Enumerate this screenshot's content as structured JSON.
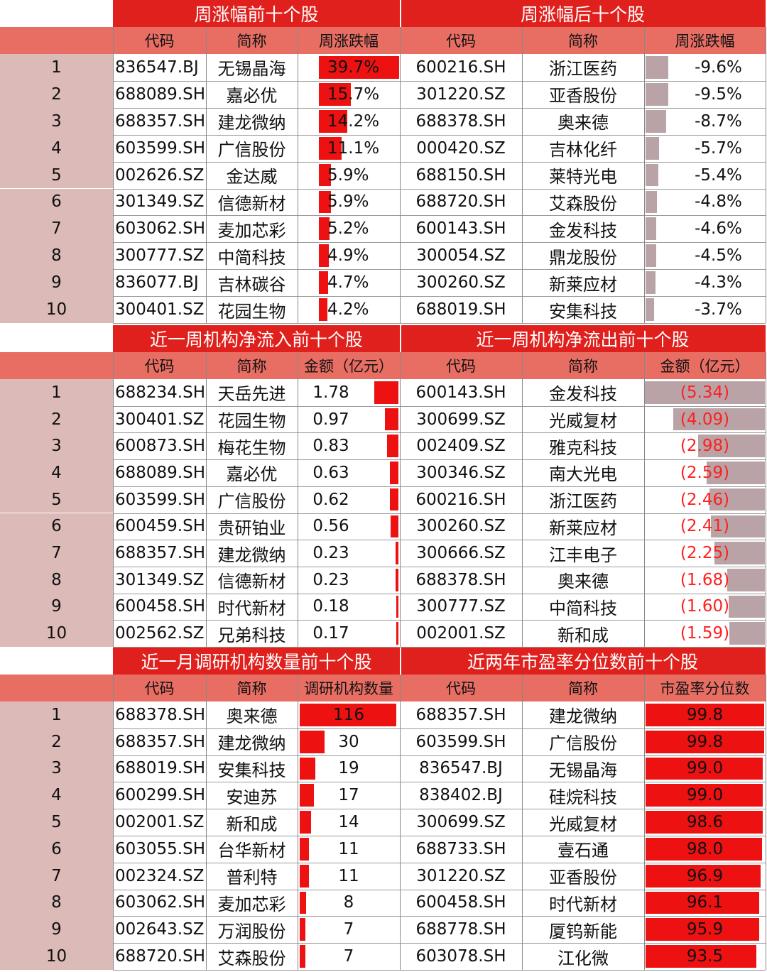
{
  "sections": [
    {
      "left": {
        "title": "周涨幅前十个股",
        "headers": [
          "代码",
          "简称",
          "周涨跌幅"
        ],
        "kind": "pct-pos",
        "rows": [
          {
            "code": "836547.BJ",
            "name": "无锡晶海",
            "value": "39.7%",
            "num": 39.7
          },
          {
            "code": "688089.SH",
            "name": "嘉必优",
            "value": "15.7%",
            "num": 15.7
          },
          {
            "code": "688357.SH",
            "name": "建龙微纳",
            "value": "14.2%",
            "num": 14.2
          },
          {
            "code": "603599.SH",
            "name": "广信股份",
            "value": "11.1%",
            "num": 11.1
          },
          {
            "code": "002626.SZ",
            "name": "金达威",
            "value": "5.9%",
            "num": 5.9
          },
          {
            "code": "301349.SZ",
            "name": "信德新材",
            "value": "5.9%",
            "num": 5.9
          },
          {
            "code": "603062.SH",
            "name": "麦加芯彩",
            "value": "5.2%",
            "num": 5.2
          },
          {
            "code": "300777.SZ",
            "name": "中简科技",
            "value": "4.9%",
            "num": 4.9
          },
          {
            "code": "836077.BJ",
            "name": "吉林碳谷",
            "value": "4.7%",
            "num": 4.7
          },
          {
            "code": "300401.SZ",
            "name": "花园生物",
            "value": "4.2%",
            "num": 4.2
          }
        ]
      },
      "right": {
        "title": "周涨幅后十个股",
        "headers": [
          "代码",
          "简称",
          "周涨跌幅"
        ],
        "kind": "pct-neg",
        "rows": [
          {
            "code": "600216.SH",
            "name": "浙江医药",
            "value": "-9.6%",
            "num": 9.6
          },
          {
            "code": "301220.SZ",
            "name": "亚香股份",
            "value": "-9.5%",
            "num": 9.5
          },
          {
            "code": "688378.SH",
            "name": "奥来德",
            "value": "-8.7%",
            "num": 8.7
          },
          {
            "code": "000420.SZ",
            "name": "吉林化纤",
            "value": "-5.7%",
            "num": 5.7
          },
          {
            "code": "688150.SH",
            "name": "莱特光电",
            "value": "-5.4%",
            "num": 5.4
          },
          {
            "code": "688720.SH",
            "name": "艾森股份",
            "value": "-4.8%",
            "num": 4.8
          },
          {
            "code": "600143.SH",
            "name": "金发科技",
            "value": "-4.6%",
            "num": 4.6
          },
          {
            "code": "300054.SZ",
            "name": "鼎龙股份",
            "value": "-4.5%",
            "num": 4.5
          },
          {
            "code": "300260.SZ",
            "name": "新莱应材",
            "value": "-4.3%",
            "num": 4.3
          },
          {
            "code": "688019.SH",
            "name": "安集科技",
            "value": "-3.7%",
            "num": 3.7
          }
        ]
      }
    },
    {
      "left": {
        "title": "近一周机构净流入前十个股",
        "headers": [
          "代码",
          "简称",
          "金额（亿元）"
        ],
        "kind": "flow-in",
        "rows": [
          {
            "code": "688234.SH",
            "name": "天岳先进",
            "value": "1.78",
            "num": 1.78
          },
          {
            "code": "300401.SZ",
            "name": "花园生物",
            "value": "0.97",
            "num": 0.97
          },
          {
            "code": "600873.SH",
            "name": "梅花生物",
            "value": "0.83",
            "num": 0.83
          },
          {
            "code": "688089.SH",
            "name": "嘉必优",
            "value": "0.63",
            "num": 0.63
          },
          {
            "code": "603599.SH",
            "name": "广信股份",
            "value": "0.62",
            "num": 0.62
          },
          {
            "code": "600459.SH",
            "name": "贵研铂业",
            "value": "0.56",
            "num": 0.56
          },
          {
            "code": "688357.SH",
            "name": "建龙微纳",
            "value": "0.23",
            "num": 0.23
          },
          {
            "code": "301349.SZ",
            "name": "信德新材",
            "value": "0.23",
            "num": 0.23
          },
          {
            "code": "600458.SH",
            "name": "时代新材",
            "value": "0.18",
            "num": 0.18
          },
          {
            "code": "002562.SZ",
            "name": "兄弟科技",
            "value": "0.17",
            "num": 0.17
          }
        ]
      },
      "right": {
        "title": "近一周机构净流出前十个股",
        "headers": [
          "代码",
          "简称",
          "金额（亿元）"
        ],
        "kind": "flow-out",
        "rows": [
          {
            "code": "600143.SH",
            "name": "金发科技",
            "value": "(5.34)",
            "num": 5.34
          },
          {
            "code": "300699.SZ",
            "name": "光威复材",
            "value": "(4.09)",
            "num": 4.09
          },
          {
            "code": "002409.SZ",
            "name": "雅克科技",
            "value": "(2.98)",
            "num": 2.98
          },
          {
            "code": "300346.SZ",
            "name": "南大光电",
            "value": "(2.59)",
            "num": 2.59
          },
          {
            "code": "600216.SH",
            "name": "浙江医药",
            "value": "(2.46)",
            "num": 2.46
          },
          {
            "code": "300260.SZ",
            "name": "新莱应材",
            "value": "(2.41)",
            "num": 2.41
          },
          {
            "code": "300666.SZ",
            "name": "江丰电子",
            "value": "(2.25)",
            "num": 2.25
          },
          {
            "code": "688378.SH",
            "name": "奥来德",
            "value": "(1.68)",
            "num": 1.68
          },
          {
            "code": "300777.SZ",
            "name": "中简科技",
            "value": "(1.60)",
            "num": 1.6
          },
          {
            "code": "002001.SZ",
            "name": "新和成",
            "value": "(1.59)",
            "num": 1.59
          }
        ]
      }
    },
    {
      "left": {
        "title": "近一月调研机构数量前十个股",
        "headers": [
          "代码",
          "简称",
          "调研机构数量"
        ],
        "kind": "count",
        "rows": [
          {
            "code": "688378.SH",
            "name": "奥来德",
            "value": "116",
            "num": 116
          },
          {
            "code": "688357.SH",
            "name": "建龙微纳",
            "value": "30",
            "num": 30
          },
          {
            "code": "688019.SH",
            "name": "安集科技",
            "value": "19",
            "num": 19
          },
          {
            "code": "600299.SH",
            "name": "安迪苏",
            "value": "17",
            "num": 17
          },
          {
            "code": "002001.SZ",
            "name": "新和成",
            "value": "14",
            "num": 14
          },
          {
            "code": "603055.SH",
            "name": "台华新材",
            "value": "11",
            "num": 11
          },
          {
            "code": "002324.SZ",
            "name": "普利特",
            "value": "11",
            "num": 11
          },
          {
            "code": "603062.SH",
            "name": "麦加芯彩",
            "value": "8",
            "num": 8
          },
          {
            "code": "002643.SZ",
            "name": "万润股份",
            "value": "7",
            "num": 7
          },
          {
            "code": "688720.SH",
            "name": "艾森股份",
            "value": "7",
            "num": 7
          }
        ]
      },
      "right": {
        "title": "近两年市盈率分位数前十个股",
        "headers": [
          "代码",
          "简称",
          "市盈率分位数"
        ],
        "kind": "pe",
        "rows": [
          {
            "code": "688357.SH",
            "name": "建龙微纳",
            "value": "99.8",
            "num": 99.8
          },
          {
            "code": "603599.SH",
            "name": "广信股份",
            "value": "99.8",
            "num": 99.8
          },
          {
            "code": "836547.BJ",
            "name": "无锡晶海",
            "value": "99.0",
            "num": 99.0
          },
          {
            "code": "838402.BJ",
            "name": "硅烷科技",
            "value": "99.0",
            "num": 99.0
          },
          {
            "code": "300699.SZ",
            "name": "光威复材",
            "value": "98.6",
            "num": 98.6
          },
          {
            "code": "688733.SH",
            "name": "壹石通",
            "value": "98.0",
            "num": 98.0
          },
          {
            "code": "301220.SZ",
            "name": "亚香股份",
            "value": "96.9",
            "num": 96.9
          },
          {
            "code": "600458.SH",
            "name": "时代新材",
            "value": "96.1",
            "num": 96.1
          },
          {
            "code": "688778.SH",
            "name": "厦钨新能",
            "value": "95.9",
            "num": 95.9
          },
          {
            "code": "603078.SH",
            "name": "江化微",
            "value": "93.5",
            "num": 93.5
          }
        ]
      }
    }
  ],
  "ranks": [
    "1",
    "2",
    "3",
    "4",
    "5",
    "6",
    "7",
    "8",
    "9",
    "10"
  ],
  "colors": {
    "title": "#e0201c",
    "header": "#e86e64",
    "rank": "#dcbab8",
    "bar_red": "#ee1111",
    "bar_gray": "#b9a3a6",
    "neg_text": "#ff2020"
  }
}
